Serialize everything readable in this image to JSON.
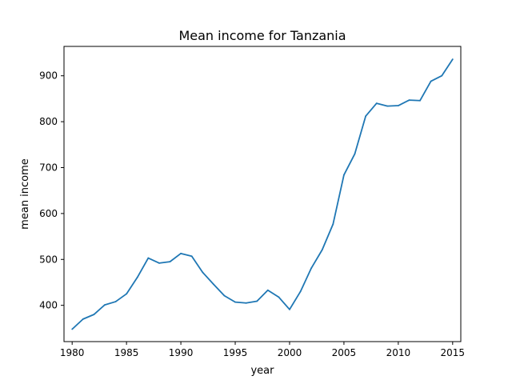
{
  "chart_data": {
    "type": "line",
    "title": "Mean income for Tanzania",
    "xlabel": "year",
    "ylabel": "mean income",
    "xlim": [
      1979.25,
      2015.75
    ],
    "ylim": [
      321,
      964
    ],
    "xticks": [
      1980,
      1985,
      1990,
      1995,
      2000,
      2005,
      2010,
      2015
    ],
    "yticks": [
      400,
      500,
      600,
      700,
      800,
      900
    ],
    "grid": false,
    "series": [
      {
        "color": "#1f77b4",
        "x": [
          1980,
          1981,
          1982,
          1983,
          1984,
          1985,
          1986,
          1987,
          1988,
          1989,
          1990,
          1991,
          1992,
          1993,
          1994,
          1995,
          1996,
          1997,
          1998,
          1999,
          2000,
          2001,
          2002,
          2003,
          2004,
          2005,
          2006,
          2007,
          2008,
          2009,
          2010,
          2011,
          2012,
          2013,
          2014,
          2015
        ],
        "y": [
          348,
          370,
          380,
          401,
          408,
          425,
          461,
          503,
          492,
          495,
          513,
          507,
          472,
          446,
          421,
          407,
          405,
          409,
          433,
          418,
          391,
          430,
          481,
          521,
          577,
          684,
          730,
          812,
          840,
          834,
          835,
          847,
          846,
          888,
          900,
          936
        ]
      }
    ]
  }
}
